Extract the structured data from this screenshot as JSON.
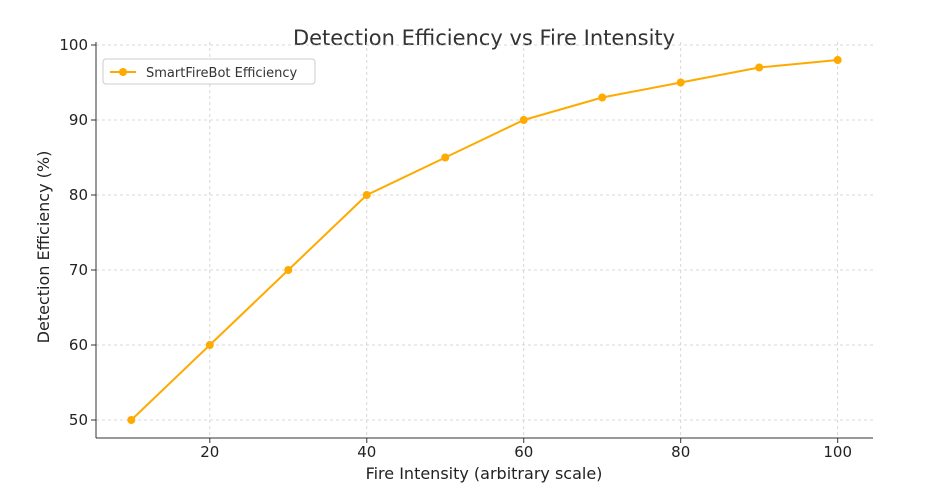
{
  "chart_data": {
    "type": "line",
    "title": "Detection Efficiency vs Fire Intensity",
    "xlabel": "Fire Intensity (arbitrary scale)",
    "ylabel": "Detection Efficiency (%)",
    "xlim": [
      5.5,
      104.5
    ],
    "ylim": [
      47.6,
      100.4
    ],
    "xticks": [
      20,
      40,
      60,
      80,
      100
    ],
    "yticks": [
      50,
      60,
      70,
      80,
      90,
      100
    ],
    "grid": true,
    "legend_position": "top-left",
    "series": [
      {
        "name": "SmartFireBot Efficiency",
        "color": "#FFAA00",
        "marker": "circle",
        "x": [
          10,
          20,
          30,
          40,
          50,
          60,
          70,
          80,
          90,
          100
        ],
        "y": [
          50,
          60,
          70,
          80,
          85,
          90,
          93,
          95,
          97,
          98
        ]
      }
    ]
  }
}
